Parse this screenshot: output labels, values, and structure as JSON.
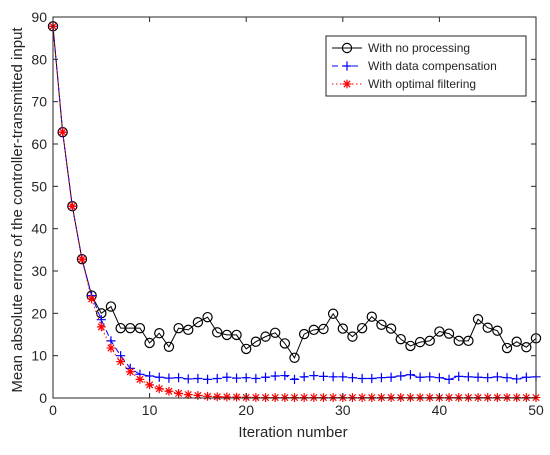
{
  "chart_data": {
    "type": "line",
    "xlabel": "Iteration number",
    "ylabel": "Mean absolute errors of the controller-transmitted input",
    "xlim": [
      0,
      50
    ],
    "ylim": [
      0,
      90
    ],
    "xticks": [
      0,
      10,
      20,
      30,
      40,
      50
    ],
    "yticks": [
      0,
      10,
      20,
      30,
      40,
      50,
      60,
      70,
      80,
      90
    ],
    "grid": false,
    "legend_position": "top-right",
    "series": [
      {
        "name": "With no processing",
        "color": "#000000",
        "marker": "circle",
        "line": "solid",
        "values": [
          87.8,
          62.8,
          45.3,
          32.8,
          24.2,
          20.0,
          21.6,
          16.5,
          16.5,
          16.5,
          13.0,
          15.3,
          12.1,
          16.5,
          16.1,
          17.9,
          19.1,
          15.5,
          14.9,
          14.9,
          11.6,
          13.3,
          14.5,
          15.4,
          12.9,
          9.5,
          15.1,
          16.1,
          16.3,
          19.9,
          16.4,
          14.5,
          16.5,
          19.2,
          17.3,
          16.4,
          13.9,
          12.3,
          13.2,
          13.5,
          15.7,
          15.2,
          13.5,
          13.5,
          18.6,
          16.6,
          15.9,
          11.8,
          13.3,
          12.0,
          14.1
        ]
      },
      {
        "name": "With data compensation",
        "color": "#0000ff",
        "marker": "plus",
        "line": "dashed",
        "values": [
          87.8,
          62.8,
          45.3,
          32.8,
          24.2,
          18.5,
          13.5,
          10.0,
          7.0,
          5.6,
          5.2,
          4.9,
          4.7,
          4.8,
          4.5,
          4.6,
          4.4,
          4.6,
          4.9,
          4.7,
          4.8,
          4.6,
          4.9,
          5.2,
          5.3,
          4.4,
          5.0,
          5.3,
          5.1,
          5.0,
          5.0,
          4.8,
          4.6,
          4.6,
          4.8,
          4.9,
          5.2,
          5.5,
          4.9,
          5.0,
          4.8,
          4.4,
          5.1,
          5.0,
          4.9,
          4.8,
          5.0,
          4.8,
          4.5,
          4.9,
          5.0
        ]
      },
      {
        "name": "With optimal filtering",
        "color": "#ff0000",
        "marker": "asterisk",
        "line": "dotted",
        "values": [
          87.8,
          62.8,
          45.3,
          32.8,
          23.4,
          16.8,
          11.8,
          8.6,
          6.2,
          4.4,
          3.1,
          2.2,
          1.6,
          1.1,
          0.8,
          0.6,
          0.4,
          0.3,
          0.25,
          0.2,
          0.15,
          0.12,
          0.1,
          0.1,
          0.1,
          0.1,
          0.1,
          0.1,
          0.1,
          0.1,
          0.1,
          0.1,
          0.1,
          0.1,
          0.1,
          0.1,
          0.1,
          0.1,
          0.1,
          0.1,
          0.1,
          0.1,
          0.1,
          0.1,
          0.1,
          0.1,
          0.1,
          0.1,
          0.1,
          0.1,
          0.1
        ]
      }
    ]
  }
}
